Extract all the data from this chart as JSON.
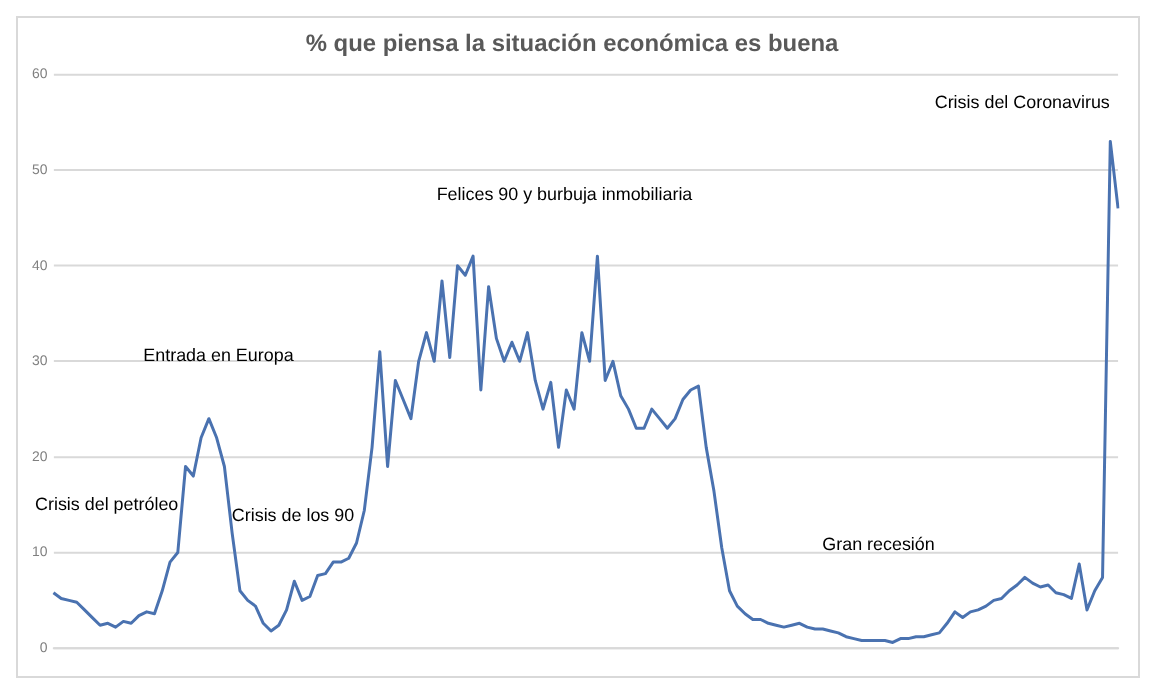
{
  "chart_data": {
    "type": "line",
    "title": "% que piensa la situación económica es buena",
    "categories": [
      null,
      null,
      null,
      null,
      null,
      null,
      null,
      null,
      null,
      null,
      null,
      null,
      null,
      null,
      null,
      null,
      null,
      null,
      null,
      null,
      null,
      null,
      null,
      null,
      null,
      null,
      null,
      null,
      null,
      null,
      null,
      null,
      null,
      null,
      null,
      null,
      null,
      null,
      null,
      null,
      null,
      null,
      null,
      null,
      null,
      null,
      null,
      null,
      null,
      null,
      null,
      null,
      null,
      null,
      null,
      null,
      null,
      null,
      null,
      null,
      null,
      null,
      null,
      null,
      null,
      null,
      null,
      null,
      null,
      null,
      null,
      null,
      null,
      null,
      null,
      null,
      null,
      null,
      null,
      null,
      null,
      null,
      null,
      null,
      null,
      null,
      null,
      null,
      null,
      null,
      null,
      null,
      null,
      null,
      null,
      null,
      null,
      null,
      null,
      null,
      null,
      null,
      null,
      null,
      null,
      null,
      null,
      null,
      null,
      null,
      null,
      null,
      null,
      null,
      null,
      null,
      null,
      null,
      null,
      null,
      null,
      null,
      null,
      null,
      null,
      null,
      null,
      null,
      null,
      null,
      null,
      null,
      null,
      null,
      null,
      null,
      null,
      null
    ],
    "values": [
      5.8,
      5.2,
      5,
      4.8,
      4,
      3.2,
      2.4,
      2.6,
      2.2,
      2.8,
      2.6,
      3.4,
      3.8,
      3.6,
      6,
      9,
      10,
      19,
      18,
      22,
      24,
      22,
      19,
      12,
      6,
      5,
      4.4,
      2.6,
      1.8,
      2.4,
      4,
      7,
      5,
      5.4,
      7.6,
      7.8,
      9,
      9,
      9.4,
      11,
      14.4,
      21,
      31,
      19,
      28,
      26,
      24,
      30,
      33,
      30,
      38.4,
      30.4,
      40,
      39,
      41,
      27,
      37.8,
      32.4,
      30,
      32,
      30,
      33,
      28,
      25,
      27.8,
      21,
      27,
      25,
      33,
      30,
      41,
      28,
      30,
      26.4,
      25,
      23,
      23,
      25,
      24,
      23,
      24,
      26,
      27,
      27.4,
      21,
      16.4,
      10.5,
      6,
      4.4,
      3.6,
      3,
      3,
      2.6,
      2.4,
      2.2,
      2.4,
      2.6,
      2.2,
      2,
      2,
      1.8,
      1.6,
      1.2,
      1,
      0.8,
      0.8,
      0.8,
      0.8,
      0.6,
      1,
      1,
      1.2,
      1.2,
      1.4,
      1.6,
      2.6,
      3.8,
      3.2,
      3.8,
      4,
      4.4,
      5,
      5.2,
      6,
      6.6,
      7.4,
      6.8,
      6.4,
      6.6,
      5.8,
      5.6,
      5.2,
      8.8,
      4,
      6,
      7.4,
      53,
      46
    ],
    "color": "#4a72b0",
    "ylim": [
      0,
      60
    ],
    "yticks": [
      0,
      10,
      20,
      30,
      40,
      50,
      60
    ],
    "grid": "y",
    "marker": "none",
    "line_style": "solid",
    "legend": false,
    "annotations": [
      "Crisis del petróleo",
      "Entrada en Europa",
      "Crisis de los 90",
      "Felices 90 y burbuja inmobiliaria",
      "Gran recesión",
      "Crisis del Coronavirus"
    ]
  }
}
